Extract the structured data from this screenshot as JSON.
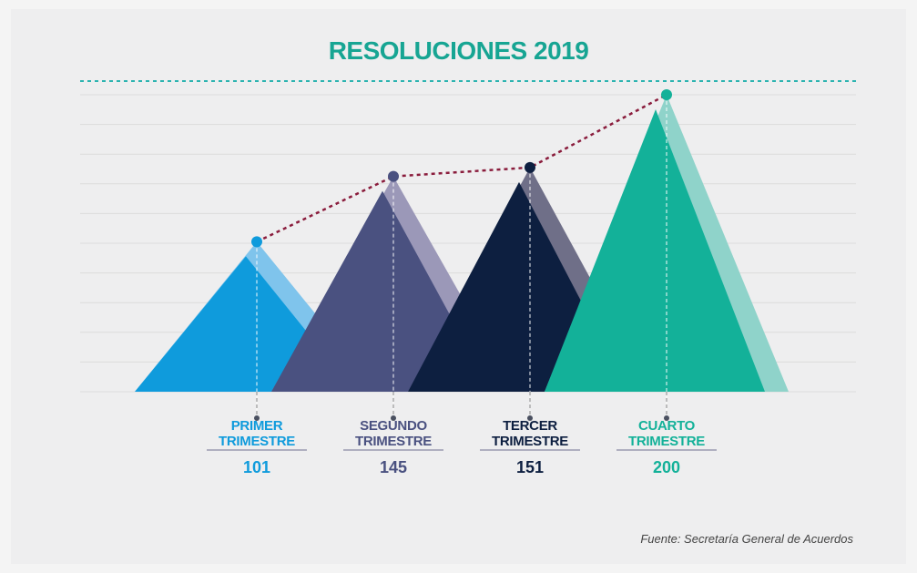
{
  "chart_data": {
    "type": "mountain",
    "title": "RESOLUCIONES 2019",
    "categories": [
      "PRIMER TRIMESTRE",
      "SEGUNDO TRIMESTRE",
      "TERCER TRIMESTRE",
      "CUARTO TRIMESTRE"
    ],
    "values": [
      101,
      145,
      151,
      200
    ],
    "colors": [
      "#0f9bdc",
      "#4a5180",
      "#0d1f40",
      "#13b199"
    ],
    "shade_colors": [
      "#7fc4ec",
      "#9b98b8",
      "#6f6f88",
      "#8fd3ca"
    ],
    "line_color": "#8a1c3c",
    "ylim": [
      0,
      200
    ],
    "yticks": [
      0,
      20,
      40,
      60,
      80,
      100,
      120,
      140,
      160,
      180,
      200
    ],
    "grid": true,
    "source": "Fuente: Secretaría General de Acuerdos"
  }
}
